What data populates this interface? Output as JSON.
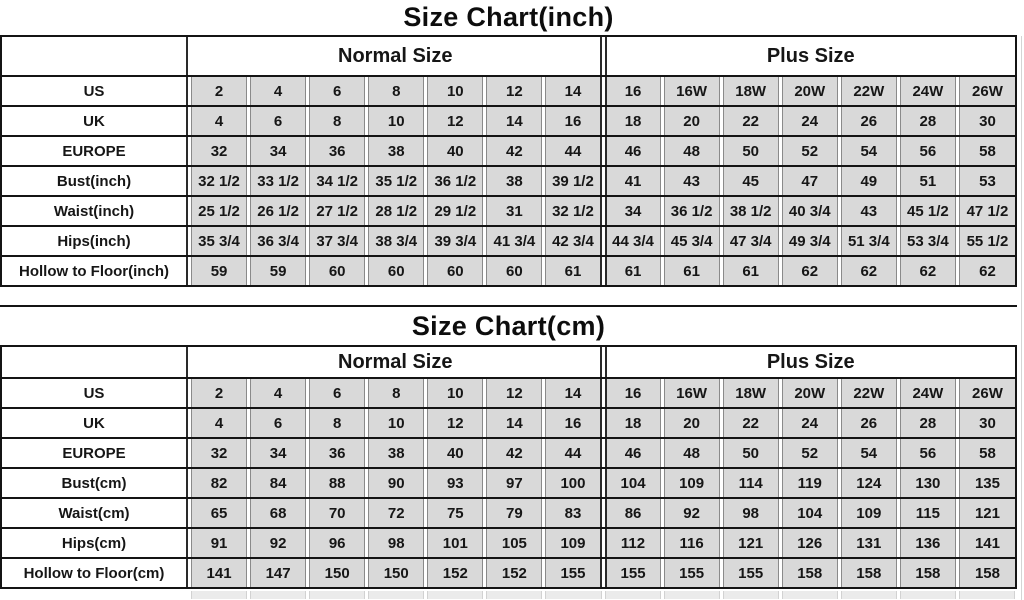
{
  "colors": {
    "cell_fill": "#d9d9d9",
    "cell_border": "#8a8a8a",
    "line_dark": "#141414",
    "text": "#161616",
    "background": "#ffffff"
  },
  "chart_data": [
    {
      "type": "table",
      "title": "Size Chart(inch)",
      "column_groups": [
        {
          "label": "Normal Size",
          "span": 7
        },
        {
          "label": "Plus Size",
          "span": 7
        }
      ],
      "rows": [
        {
          "label": "US",
          "values": [
            "2",
            "4",
            "6",
            "8",
            "10",
            "12",
            "14",
            "16",
            "16W",
            "18W",
            "20W",
            "22W",
            "24W",
            "26W"
          ]
        },
        {
          "label": "UK",
          "values": [
            "4",
            "6",
            "8",
            "10",
            "12",
            "14",
            "16",
            "18",
            "20",
            "22",
            "24",
            "26",
            "28",
            "30"
          ]
        },
        {
          "label": "EUROPE",
          "values": [
            "32",
            "34",
            "36",
            "38",
            "40",
            "42",
            "44",
            "46",
            "48",
            "50",
            "52",
            "54",
            "56",
            "58"
          ]
        },
        {
          "label": "Bust(inch)",
          "values": [
            "32 1/2",
            "33 1/2",
            "34 1/2",
            "35 1/2",
            "36 1/2",
            "38",
            "39 1/2",
            "41",
            "43",
            "45",
            "47",
            "49",
            "51",
            "53"
          ]
        },
        {
          "label": "Waist(inch)",
          "values": [
            "25 1/2",
            "26 1/2",
            "27 1/2",
            "28 1/2",
            "29 1/2",
            "31",
            "32 1/2",
            "34",
            "36 1/2",
            "38 1/2",
            "40 3/4",
            "43",
            "45 1/2",
            "47 1/2"
          ]
        },
        {
          "label": "Hips(inch)",
          "values": [
            "35 3/4",
            "36 3/4",
            "37 3/4",
            "38 3/4",
            "39 3/4",
            "41 3/4",
            "42 3/4",
            "44 3/4",
            "45 3/4",
            "47 3/4",
            "49 3/4",
            "51 3/4",
            "53 3/4",
            "55 1/2"
          ]
        },
        {
          "label": "Hollow to Floor(inch)",
          "values": [
            "59",
            "59",
            "60",
            "60",
            "60",
            "60",
            "61",
            "61",
            "61",
            "61",
            "62",
            "62",
            "62",
            "62"
          ]
        }
      ]
    },
    {
      "type": "table",
      "title": "Size Chart(cm)",
      "column_groups": [
        {
          "label": "Normal Size",
          "span": 7
        },
        {
          "label": "Plus Size",
          "span": 7
        }
      ],
      "rows": [
        {
          "label": "US",
          "values": [
            "2",
            "4",
            "6",
            "8",
            "10",
            "12",
            "14",
            "16",
            "16W",
            "18W",
            "20W",
            "22W",
            "24W",
            "26W"
          ]
        },
        {
          "label": "UK",
          "values": [
            "4",
            "6",
            "8",
            "10",
            "12",
            "14",
            "16",
            "18",
            "20",
            "22",
            "24",
            "26",
            "28",
            "30"
          ]
        },
        {
          "label": "EUROPE",
          "values": [
            "32",
            "34",
            "36",
            "38",
            "40",
            "42",
            "44",
            "46",
            "48",
            "50",
            "52",
            "54",
            "56",
            "58"
          ]
        },
        {
          "label": "Bust(cm)",
          "values": [
            "82",
            "84",
            "88",
            "90",
            "93",
            "97",
            "100",
            "104",
            "109",
            "114",
            "119",
            "124",
            "130",
            "135"
          ]
        },
        {
          "label": "Waist(cm)",
          "values": [
            "65",
            "68",
            "70",
            "72",
            "75",
            "79",
            "83",
            "86",
            "92",
            "98",
            "104",
            "109",
            "115",
            "121"
          ]
        },
        {
          "label": "Hips(cm)",
          "values": [
            "91",
            "92",
            "96",
            "98",
            "101",
            "105",
            "109",
            "112",
            "116",
            "121",
            "126",
            "131",
            "136",
            "141"
          ]
        },
        {
          "label": "Hollow to Floor(cm)",
          "values": [
            "141",
            "147",
            "150",
            "150",
            "152",
            "152",
            "155",
            "155",
            "155",
            "155",
            "158",
            "158",
            "158",
            "158"
          ]
        }
      ]
    }
  ]
}
